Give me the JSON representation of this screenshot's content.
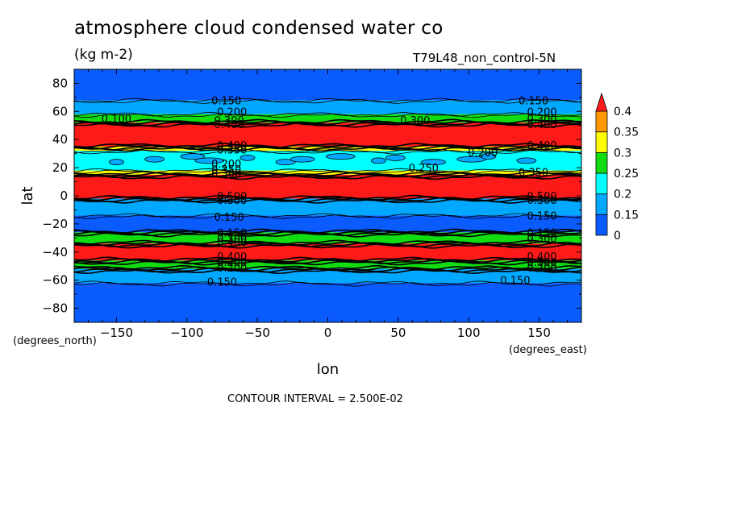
{
  "title": "atmosphere cloud condensed water co",
  "units": "(kg m-2)",
  "subtitle": "T79L48_non_control-5N",
  "footnote": "CONTOUR INTERVAL = 2.500E-02",
  "chart_data": {
    "type": "heatmap",
    "xlabel": "lon",
    "ylabel": "lat",
    "x_units": "(degrees_east)",
    "y_units": "(degrees_north)",
    "xlim": [
      -180,
      180
    ],
    "ylim": [
      -90,
      90
    ],
    "x_ticks": [
      -150,
      -100,
      -50,
      0,
      50,
      100,
      150
    ],
    "y_ticks": [
      80,
      60,
      40,
      20,
      0,
      -20,
      -40,
      -60,
      -80
    ],
    "colorbar": {
      "levels": [
        0,
        0.15,
        0.2,
        0.25,
        0.3,
        0.35,
        0.4
      ],
      "tick_labels": [
        "0",
        "0.15",
        "0.2",
        "0.25",
        "0.3",
        "0.35",
        "0.4"
      ],
      "colors": [
        "#0a5cff",
        "#00a8ff",
        "#00ffff",
        "#11dd11",
        "#ffff00",
        "#ff9900",
        "#ff1a1a"
      ],
      "extend": "max"
    },
    "zonal_bands": [
      {
        "lat_min": 68,
        "lat_max": 90,
        "level": "0-0.15"
      },
      {
        "lat_min": 58,
        "lat_max": 68,
        "level": "0.15-0.2"
      },
      {
        "lat_min": 52,
        "lat_max": 58,
        "level": "0.2-0.4"
      },
      {
        "lat_min": 35,
        "lat_max": 52,
        "level": ">0.4"
      },
      {
        "lat_min": 32,
        "lat_max": 35,
        "level": "0.3-0.4"
      },
      {
        "lat_min": 18,
        "lat_max": 32,
        "level": "0.15-0.3"
      },
      {
        "lat_min": 15,
        "lat_max": 18,
        "level": "0.3-0.4"
      },
      {
        "lat_min": -2,
        "lat_max": 15,
        "level": ">0.4"
      },
      {
        "lat_min": -14,
        "lat_max": -2,
        "level": "0.15-0.2"
      },
      {
        "lat_min": -26,
        "lat_max": -14,
        "level": "0-0.15"
      },
      {
        "lat_min": -34,
        "lat_max": -26,
        "level": "0.2-0.4"
      },
      {
        "lat_min": -46,
        "lat_max": -34,
        "level": ">0.4"
      },
      {
        "lat_min": -52,
        "lat_max": -46,
        "level": "0.2-0.4"
      },
      {
        "lat_min": -62,
        "lat_max": -52,
        "level": "0.15-0.2"
      },
      {
        "lat_min": -90,
        "lat_max": -62,
        "level": "0-0.15"
      }
    ],
    "contour_labels": [
      {
        "text": "0.150",
        "lon": -72,
        "lat": 68
      },
      {
        "text": "0.200",
        "lon": -68,
        "lat": 60
      },
      {
        "text": "0.100",
        "lon": -150,
        "lat": 55
      },
      {
        "text": "0.300",
        "lon": -70,
        "lat": 54
      },
      {
        "text": "0.400",
        "lon": -70,
        "lat": 51
      },
      {
        "text": "0.300",
        "lon": 62,
        "lat": 54
      },
      {
        "text": "0.150",
        "lon": 146,
        "lat": 68
      },
      {
        "text": "0.200",
        "lon": 152,
        "lat": 60
      },
      {
        "text": "0.300",
        "lon": 152,
        "lat": 55
      },
      {
        "text": "0.400",
        "lon": 152,
        "lat": 51
      },
      {
        "text": "0.400",
        "lon": -68,
        "lat": 36
      },
      {
        "text": "0.350",
        "lon": -68,
        "lat": 33
      },
      {
        "text": "0.400",
        "lon": 152,
        "lat": 36
      },
      {
        "text": "0.200",
        "lon": 110,
        "lat": 31
      },
      {
        "text": "0.200",
        "lon": -72,
        "lat": 23
      },
      {
        "text": "0.350",
        "lon": -72,
        "lat": 19
      },
      {
        "text": "0.300",
        "lon": -72,
        "lat": 16
      },
      {
        "text": "0.250",
        "lon": 68,
        "lat": 20
      },
      {
        "text": "0.350",
        "lon": 146,
        "lat": 17
      },
      {
        "text": "0.500",
        "lon": -68,
        "lat": 0
      },
      {
        "text": "0.300",
        "lon": -68,
        "lat": -3
      },
      {
        "text": "0.500",
        "lon": 152,
        "lat": 0
      },
      {
        "text": "0.300",
        "lon": 152,
        "lat": -3
      },
      {
        "text": "0.150",
        "lon": -70,
        "lat": -15
      },
      {
        "text": "0.150",
        "lon": 152,
        "lat": -14
      },
      {
        "text": "0.150",
        "lon": -68,
        "lat": -26
      },
      {
        "text": "0.300",
        "lon": -68,
        "lat": -30
      },
      {
        "text": "0.400",
        "lon": -68,
        "lat": -33
      },
      {
        "text": "0.150",
        "lon": 152,
        "lat": -26
      },
      {
        "text": "0.300",
        "lon": 152,
        "lat": -30
      },
      {
        "text": "0.400",
        "lon": -68,
        "lat": -43
      },
      {
        "text": "0.300",
        "lon": -68,
        "lat": -47
      },
      {
        "text": "0.200",
        "lon": -68,
        "lat": -51
      },
      {
        "text": "0.400",
        "lon": 152,
        "lat": -43
      },
      {
        "text": "0.300",
        "lon": 152,
        "lat": -47
      },
      {
        "text": "0.200",
        "lon": 152,
        "lat": -51
      },
      {
        "text": "0.150",
        "lon": -75,
        "lat": -61
      },
      {
        "text": "0.150",
        "lon": 133,
        "lat": -60
      }
    ]
  }
}
